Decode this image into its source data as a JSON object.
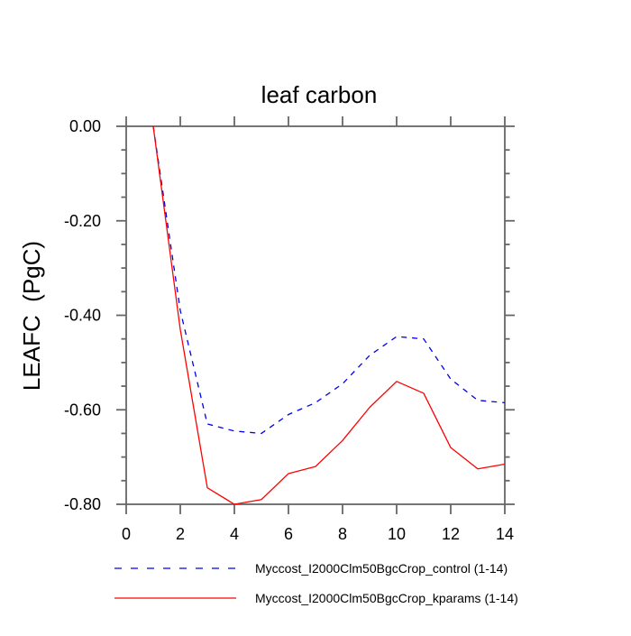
{
  "chart_data": {
    "type": "line",
    "title": "leaf carbon",
    "xlabel": "",
    "ylabel": "LEAFC  (PgC)",
    "xlim": [
      0,
      14
    ],
    "ylim": [
      -0.8,
      0.0
    ],
    "grid": false,
    "legend_position": "bottom",
    "x_major_ticks": [
      0,
      2,
      4,
      6,
      8,
      10,
      12,
      14
    ],
    "x_tick_labels": [
      "0",
      "2",
      "4",
      "6",
      "8",
      "10",
      "12",
      "14"
    ],
    "y_major_ticks": [
      0.0,
      -0.2,
      -0.4,
      -0.6,
      -0.8
    ],
    "y_tick_labels": [
      "0.00",
      "-0.20",
      "-0.40",
      "-0.60",
      "-0.80"
    ],
    "y_minor_interval": 0.05,
    "x": [
      1,
      2,
      3,
      4,
      5,
      6,
      7,
      8,
      9,
      10,
      11,
      12,
      13,
      14
    ],
    "series": [
      {
        "name": "Myccost_I2000Clm50BgcCrop_control (1-14)",
        "color": "#0000ee",
        "style": "dashed",
        "values": [
          0.0,
          -0.39,
          -0.63,
          -0.645,
          -0.65,
          -0.61,
          -0.585,
          -0.545,
          -0.485,
          -0.445,
          -0.45,
          -0.535,
          -0.58,
          -0.585
        ]
      },
      {
        "name": "Myccost_I2000Clm50BgcCrop_kparams (1-14)",
        "color": "#ff0000",
        "style": "solid",
        "values": [
          0.0,
          -0.43,
          -0.765,
          -0.8,
          -0.79,
          -0.735,
          -0.72,
          -0.665,
          -0.595,
          -0.54,
          -0.565,
          -0.68,
          -0.725,
          -0.715
        ]
      }
    ]
  },
  "colors": {
    "axis": "#666666",
    "text": "#000000",
    "background": "#ffffff"
  }
}
